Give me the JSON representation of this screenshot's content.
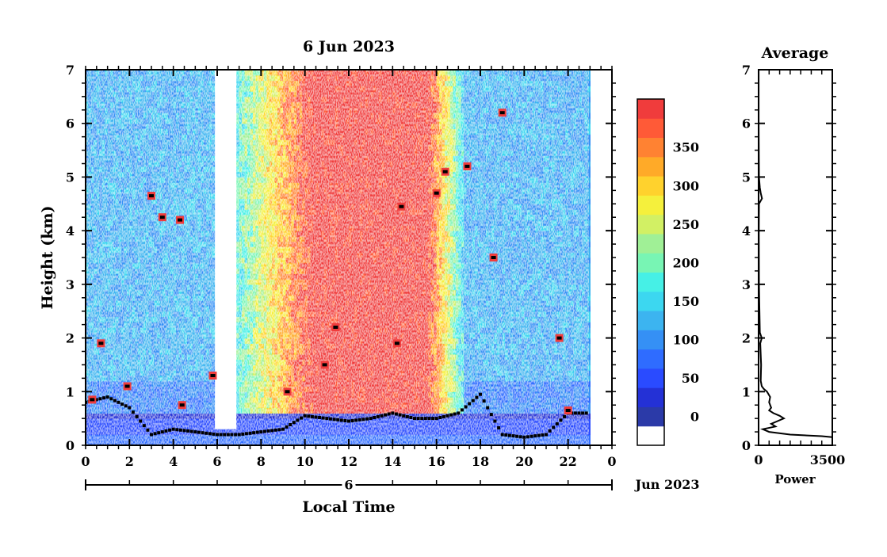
{
  "chart_data": [
    {
      "type": "heatmap",
      "title": "6 Jun 2023",
      "xlabel": "Local Time",
      "ylabel": "Height (km)",
      "date_axis": {
        "day_label": "6",
        "month_year": "Jun 2023"
      },
      "x_ticks": [
        "0",
        "2",
        "4",
        "6",
        "8",
        "10",
        "12",
        "14",
        "16",
        "18",
        "20",
        "22",
        "0"
      ],
      "y_ticks": [
        "0",
        "1",
        "2",
        "3",
        "4",
        "5",
        "6",
        "7"
      ],
      "xlim": [
        0,
        24
      ],
      "ylim": [
        0,
        7
      ],
      "data_end_hour": 23,
      "colorbar": {
        "ticks": [
          "0",
          "50",
          "100",
          "150",
          "200",
          "250",
          "300",
          "350"
        ],
        "range": [
          0,
          375
        ],
        "colors": [
          "#ffffff",
          "#2b3aa8",
          "#2431d6",
          "#2a4bff",
          "#2f6cff",
          "#3590f5",
          "#3cb4f0",
          "#3cd7f0",
          "#46f0e6",
          "#78f5b4",
          "#a0f096",
          "#d2f064",
          "#f5f03c",
          "#ffd22d",
          "#ffaa28",
          "#ff8232",
          "#ff5a37",
          "#f03c3c"
        ]
      },
      "features": {
        "aerosol_band_top_km": 0.6,
        "red_region_hours": [
          10.5,
          15.5
        ],
        "cloud_points": [
          {
            "t": 0.3,
            "h": 0.85
          },
          {
            "t": 0.7,
            "h": 1.9
          },
          {
            "t": 1.9,
            "h": 1.1
          },
          {
            "t": 3.0,
            "h": 4.65
          },
          {
            "t": 3.5,
            "h": 4.25
          },
          {
            "t": 4.3,
            "h": 4.2
          },
          {
            "t": 4.4,
            "h": 0.75
          },
          {
            "t": 5.8,
            "h": 1.3
          },
          {
            "t": 9.2,
            "h": 1.0
          },
          {
            "t": 10.9,
            "h": 1.5
          },
          {
            "t": 11.4,
            "h": 2.2
          },
          {
            "t": 14.2,
            "h": 1.9
          },
          {
            "t": 14.4,
            "h": 4.45
          },
          {
            "t": 16.0,
            "h": 4.7
          },
          {
            "t": 16.4,
            "h": 5.1
          },
          {
            "t": 17.4,
            "h": 5.2
          },
          {
            "t": 18.6,
            "h": 3.5
          },
          {
            "t": 19.0,
            "h": 6.2
          },
          {
            "t": 21.6,
            "h": 2.0
          },
          {
            "t": 22.0,
            "h": 0.65
          }
        ],
        "boundary_layer": [
          [
            0,
            0.8
          ],
          [
            1,
            0.9
          ],
          [
            2,
            0.7
          ],
          [
            3,
            0.2
          ],
          [
            4,
            0.3
          ],
          [
            5,
            0.25
          ],
          [
            6,
            0.2
          ],
          [
            7,
            0.2
          ],
          [
            8,
            0.25
          ],
          [
            9,
            0.3
          ],
          [
            10,
            0.55
          ],
          [
            11,
            0.5
          ],
          [
            12,
            0.45
          ],
          [
            13,
            0.5
          ],
          [
            14,
            0.6
          ],
          [
            15,
            0.5
          ],
          [
            16,
            0.5
          ],
          [
            17,
            0.6
          ],
          [
            18,
            0.95
          ],
          [
            19,
            0.2
          ],
          [
            20,
            0.15
          ],
          [
            21,
            0.2
          ],
          [
            22,
            0.6
          ],
          [
            23,
            0.6
          ]
        ]
      }
    },
    {
      "type": "line",
      "title": "Average",
      "xlabel": "Power",
      "x_ticks": [
        "0",
        "3500"
      ],
      "y_ticks": [
        "0",
        "1",
        "2",
        "3",
        "4",
        "5",
        "6",
        "7"
      ],
      "xlim": [
        0,
        3500
      ],
      "ylim": [
        0,
        7
      ],
      "series": [
        {
          "points": [
            [
              3500,
              0.15
            ],
            [
              3000,
              0.17
            ],
            [
              1500,
              0.2
            ],
            [
              500,
              0.25
            ],
            [
              200,
              0.3
            ],
            [
              800,
              0.35
            ],
            [
              600,
              0.4
            ],
            [
              900,
              0.45
            ],
            [
              1200,
              0.5
            ],
            [
              1000,
              0.55
            ],
            [
              700,
              0.6
            ],
            [
              500,
              0.65
            ],
            [
              600,
              0.7
            ],
            [
              500,
              0.8
            ],
            [
              550,
              0.9
            ],
            [
              400,
              1.0
            ],
            [
              250,
              1.05
            ],
            [
              150,
              1.1
            ],
            [
              100,
              1.2
            ],
            [
              120,
              1.5
            ],
            [
              80,
              1.9
            ],
            [
              150,
              2.0
            ],
            [
              60,
              2.1
            ],
            [
              40,
              2.5
            ],
            [
              20,
              3.0
            ],
            [
              15,
              3.5
            ],
            [
              10,
              4.0
            ],
            [
              20,
              4.5
            ],
            [
              160,
              4.6
            ],
            [
              100,
              4.7
            ],
            [
              60,
              4.8
            ],
            [
              20,
              5.0
            ],
            [
              10,
              5.5
            ],
            [
              5,
              6.0
            ],
            [
              5,
              6.5
            ],
            [
              5,
              7.0
            ]
          ]
        }
      ]
    }
  ]
}
